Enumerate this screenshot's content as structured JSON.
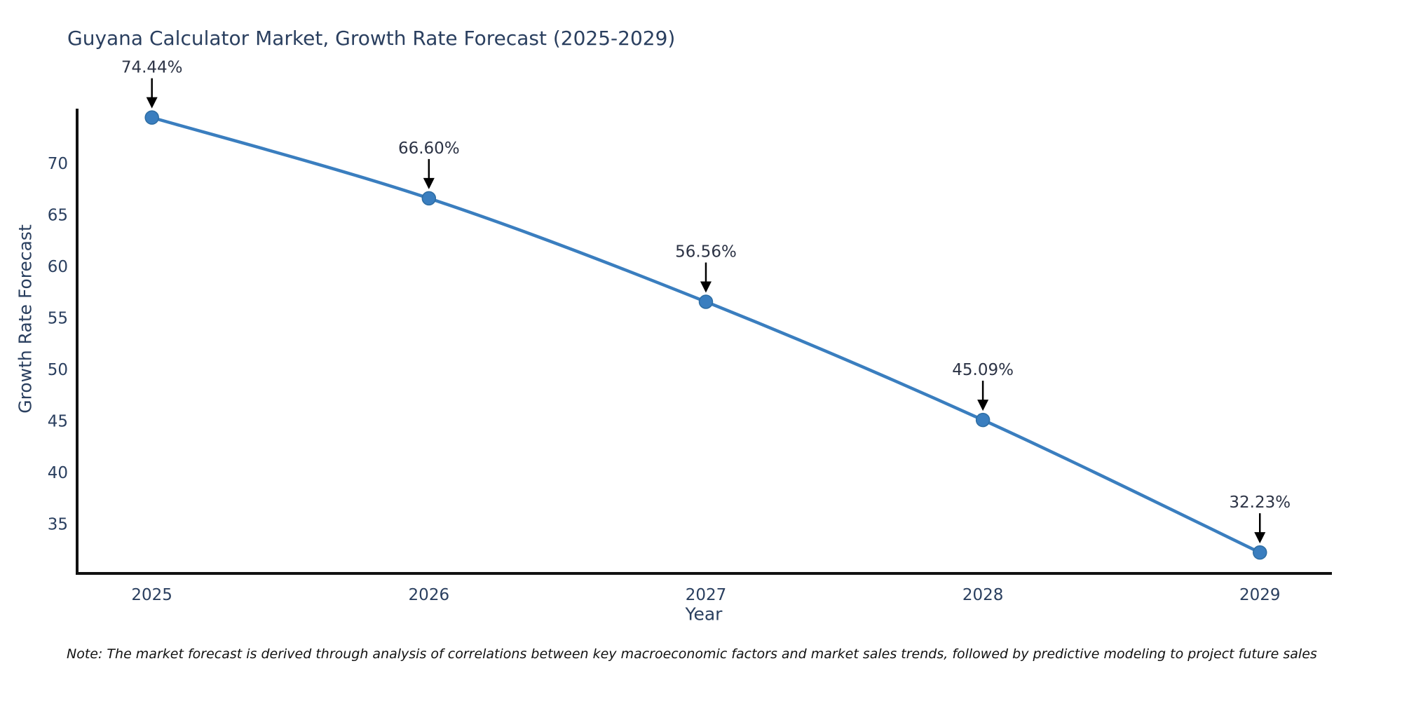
{
  "chart_data": {
    "type": "line",
    "title": "Guyana Calculator Market, Growth Rate Forecast (2025-2029)",
    "xlabel": "Year",
    "ylabel": "Growth Rate Forecast",
    "x": [
      2025,
      2026,
      2027,
      2028,
      2029
    ],
    "values": [
      74.44,
      66.6,
      56.56,
      45.09,
      32.23
    ],
    "point_labels": [
      "74.44%",
      "66.60%",
      "56.56%",
      "45.09%",
      "32.23%"
    ],
    "x_tick_labels": [
      "2025",
      "2026",
      "2027",
      "2028",
      "2029"
    ],
    "y_tick_values": [
      35,
      40,
      45,
      50,
      55,
      60,
      65,
      70
    ],
    "xlim": [
      2024.73,
      2029.26
    ],
    "ylim": [
      30.2,
      75.3
    ],
    "grid": false,
    "legend": "none",
    "line_color": "#3a7ebf",
    "marker_color": "#3a7ebf",
    "marker_edge_color": "#2d6da3",
    "axis_color": "#111111",
    "tick_text_color": "#2a3f5f",
    "annotation_text_color": "#2c3345",
    "annotation_arrow_color": "#000000",
    "note": "Note: The market forecast is derived through analysis of correlations between key macroeconomic factors and market sales trends, followed by predictive modeling to project future sales"
  }
}
